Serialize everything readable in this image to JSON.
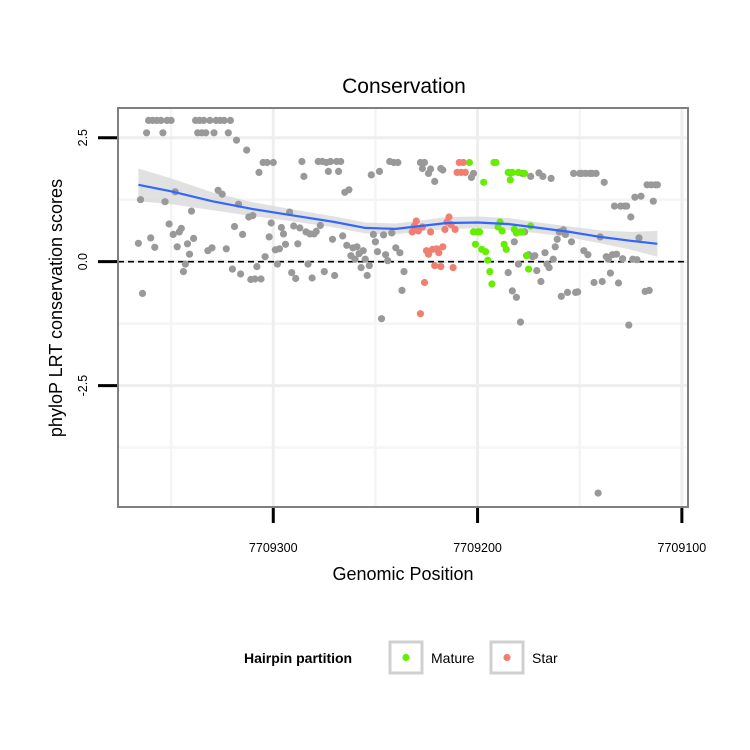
{
  "chart_data": {
    "type": "scatter",
    "title": "Conservation",
    "xlabel": "Genomic Position",
    "ylabel": "phyloP LRT conservation scores",
    "x_reversed": true,
    "xlim": [
      7709376,
      7709097
    ],
    "ylim": [
      -4.95,
      3.1
    ],
    "x_ticks": [
      7709300,
      7709200,
      7709100
    ],
    "x_tick_labels": [
      "7709300",
      "7709200",
      "7709100"
    ],
    "y_ticks": [
      2.5,
      0.0,
      -2.5
    ],
    "y_tick_labels": [
      "2.5",
      "0.0",
      "-2.5"
    ],
    "x_minor_gridlines": [
      7709350,
      7709250,
      7709150
    ],
    "y_minor_gridlines": [
      1.25,
      -1.25,
      -3.75
    ],
    "reference_line": {
      "y": 0,
      "style": "dashed"
    },
    "grid": true,
    "legend": {
      "title": "Hairpin partition",
      "placement": "bottom",
      "entries": [
        {
          "name": "Mature",
          "color": "#66ee00"
        },
        {
          "name": "Star",
          "color": "#f07f72"
        }
      ]
    },
    "colors": {
      "other": "#999999",
      "mature": "#66ee00",
      "star": "#f07f72",
      "smooth": "#3366ff",
      "band": "#dadada"
    },
    "series": [
      {
        "name": "",
        "color": "#999999",
        "points": [
          [
            7709366,
            0.37
          ],
          [
            7709365,
            1.25
          ],
          [
            7709364,
            -0.64
          ],
          [
            7709362,
            2.6
          ],
          [
            7709361,
            2.85
          ],
          [
            7709360,
            0.48
          ],
          [
            7709359,
            2.85
          ],
          [
            7709358,
            0.29
          ],
          [
            7709357,
            2.85
          ],
          [
            7709355,
            2.85
          ],
          [
            7709354,
            2.6
          ],
          [
            7709353,
            1.21
          ],
          [
            7709352,
            2.85
          ],
          [
            7709351,
            0.76
          ],
          [
            7709350,
            2.85
          ],
          [
            7709349,
            0.55
          ],
          [
            7709348,
            1.41
          ],
          [
            7709347,
            0.3
          ],
          [
            7709346,
            0.6
          ],
          [
            7709345,
            0.67
          ],
          [
            7709344,
            -0.2
          ],
          [
            7709343,
            -0.05
          ],
          [
            7709342,
            0.36
          ],
          [
            7709341,
            0.15
          ],
          [
            7709340,
            1.02
          ],
          [
            7709339,
            0.47
          ],
          [
            7709338,
            2.85
          ],
          [
            7709337,
            2.6
          ],
          [
            7709336,
            2.85
          ],
          [
            7709335,
            2.6
          ],
          [
            7709334,
            2.85
          ],
          [
            7709333,
            2.6
          ],
          [
            7709332,
            0.22
          ],
          [
            7709331,
            2.85
          ],
          [
            7709330,
            0.28
          ],
          [
            7709329,
            2.6
          ],
          [
            7709328,
            2.85
          ],
          [
            7709327,
            1.44
          ],
          [
            7709326,
            2.85
          ],
          [
            7709325,
            1.36
          ],
          [
            7709324,
            2.85
          ],
          [
            7709323,
            0.26
          ],
          [
            7709322,
            2.6
          ],
          [
            7709321,
            2.85
          ],
          [
            7709320,
            -0.15
          ],
          [
            7709319,
            0.71
          ],
          [
            7709318,
            2.45
          ],
          [
            7709317,
            1.16
          ],
          [
            7709316,
            -0.25
          ],
          [
            7709315,
            0.55
          ],
          [
            7709313,
            2.25
          ],
          [
            7709312,
            0.9
          ],
          [
            7709311,
            -0.36
          ],
          [
            7709310,
            0.93
          ],
          [
            7709309,
            -0.35
          ],
          [
            7709308,
            -0.1
          ],
          [
            7709307,
            1.8
          ],
          [
            7709306,
            -0.35
          ],
          [
            7709305,
            2.0
          ],
          [
            7709304,
            0.1
          ],
          [
            7709303,
            2.0
          ],
          [
            7709302,
            0.5
          ],
          [
            7709301,
            0.78
          ],
          [
            7709300,
            2.0
          ],
          [
            7709299,
            0.24
          ],
          [
            7709298,
            -0.05
          ],
          [
            7709297,
            0.26
          ],
          [
            7709296,
            0.69
          ],
          [
            7709295,
            0.56
          ],
          [
            7709294,
            0.35
          ],
          [
            7709292,
            1.0
          ],
          [
            7709291,
            -0.22
          ],
          [
            7709290,
            0.72
          ],
          [
            7709289,
            -0.34
          ],
          [
            7709288,
            0.36
          ],
          [
            7709287,
            0.68
          ],
          [
            7709286,
            2.02
          ],
          [
            7709285,
            1.72
          ],
          [
            7709284,
            0.6
          ],
          [
            7709283,
            -0.05
          ],
          [
            7709282,
            0.56
          ],
          [
            7709281,
            -0.33
          ],
          [
            7709280,
            0.56
          ],
          [
            7709279,
            0.61
          ],
          [
            7709278,
            2.02
          ],
          [
            7709277,
            0.73
          ],
          [
            7709276,
            2.02
          ],
          [
            7709275,
            -0.2
          ],
          [
            7709274,
            2.0
          ],
          [
            7709273,
            1.82
          ],
          [
            7709272,
            2.02
          ],
          [
            7709271,
            0.45
          ],
          [
            7709270,
            -0.28
          ],
          [
            7709269,
            2.02
          ],
          [
            7709268,
            1.82
          ],
          [
            7709267,
            2.02
          ],
          [
            7709266,
            0.52
          ],
          [
            7709265,
            1.4
          ],
          [
            7709264,
            0.33
          ],
          [
            7709263,
            1.45
          ],
          [
            7709262,
            0.12
          ],
          [
            7709261,
            0.28
          ],
          [
            7709260,
            0.05
          ],
          [
            7709259,
            0.3
          ],
          [
            7709258,
            0.16
          ],
          [
            7709257,
            -0.12
          ],
          [
            7709256,
            0.22
          ],
          [
            7709255,
            0.05
          ],
          [
            7709254,
            -0.28
          ],
          [
            7709253,
            -0.08
          ],
          [
            7709252,
            1.75
          ],
          [
            7709251,
            0.55
          ],
          [
            7709250,
            0.4
          ],
          [
            7709249,
            0.2
          ],
          [
            7709248,
            1.82
          ],
          [
            7709247,
            -1.15
          ],
          [
            7709246,
            0.54
          ],
          [
            7709245,
            0.14
          ],
          [
            7709244,
            0.02
          ],
          [
            7709243,
            2.02
          ],
          [
            7709242,
            0.58
          ],
          [
            7709241,
            2.0
          ],
          [
            7709240,
            0.28
          ],
          [
            7709239,
            2.0
          ],
          [
            7709238,
            0.18
          ],
          [
            7709237,
            -0.58
          ],
          [
            7709236,
            -0.2
          ],
          [
            7709228,
            2.0
          ],
          [
            7709227,
            1.88
          ],
          [
            7709226,
            2.0
          ],
          [
            7709224,
            1.78
          ],
          [
            7709223,
            1.87
          ],
          [
            7709221,
            1.62
          ],
          [
            7709218,
            1.88
          ],
          [
            7709217,
            1.85
          ],
          [
            7709203,
            1.7
          ],
          [
            7709202,
            1.78
          ],
          [
            7709185,
            -0.22
          ],
          [
            7709184,
            1.79
          ],
          [
            7709183,
            -0.59
          ],
          [
            7709182,
            0.4
          ],
          [
            7709181,
            -0.72
          ],
          [
            7709180,
            -0.05
          ],
          [
            7709179,
            -1.22
          ],
          [
            7709178,
            1.78
          ],
          [
            7709177,
            0.6
          ],
          [
            7709176,
            0.12
          ],
          [
            7709175,
            0.14
          ],
          [
            7709174,
            1.72
          ],
          [
            7709173,
            0.1
          ],
          [
            7709172,
            0.12
          ],
          [
            7709171,
            -0.18
          ],
          [
            7709170,
            1.79
          ],
          [
            7709169,
            -0.4
          ],
          [
            7709168,
            1.72
          ],
          [
            7709167,
            0.18
          ],
          [
            7709166,
            -0.05
          ],
          [
            7709165,
            -0.12
          ],
          [
            7709164,
            1.68
          ],
          [
            7709163,
            0.05
          ],
          [
            7709162,
            0.3
          ],
          [
            7709161,
            0.45
          ],
          [
            7709160,
            0.6
          ],
          [
            7709159,
            -0.7
          ],
          [
            7709158,
            0.64
          ],
          [
            7709157,
            0.55
          ],
          [
            7709156,
            -0.62
          ],
          [
            7709154,
            0.4
          ],
          [
            7709153,
            1.78
          ],
          [
            7709152,
            -0.62
          ],
          [
            7709151,
            -0.61
          ],
          [
            7709150,
            1.78
          ],
          [
            7709149,
            1.78
          ],
          [
            7709148,
            0.22
          ],
          [
            7709147,
            1.78
          ],
          [
            7709146,
            0.14
          ],
          [
            7709145,
            1.78
          ],
          [
            7709144,
            1.78
          ],
          [
            7709143,
            -0.42
          ],
          [
            7709142,
            1.78
          ],
          [
            7709141,
            -4.67
          ],
          [
            7709140,
            0.5
          ],
          [
            7709139,
            -0.4
          ],
          [
            7709138,
            1.6
          ],
          [
            7709137,
            0.1
          ],
          [
            7709136,
            0.05
          ],
          [
            7709135,
            -0.23
          ],
          [
            7709134,
            0.14
          ],
          [
            7709133,
            1.12
          ],
          [
            7709132,
            0.15
          ],
          [
            7709131,
            -0.43
          ],
          [
            7709130,
            1.12
          ],
          [
            7709129,
            0.06
          ],
          [
            7709128,
            1.12
          ],
          [
            7709127,
            1.12
          ],
          [
            7709126,
            -1.28
          ],
          [
            7709125,
            0.9
          ],
          [
            7709124,
            0.05
          ],
          [
            7709123,
            1.3
          ],
          [
            7709122,
            0.04
          ],
          [
            7709121,
            0.48
          ],
          [
            7709120,
            1.32
          ],
          [
            7709118,
            -0.6
          ],
          [
            7709117,
            1.55
          ],
          [
            7709116,
            -0.58
          ],
          [
            7709115,
            1.55
          ],
          [
            7709114,
            1.22
          ],
          [
            7709113,
            1.55
          ],
          [
            7709112,
            1.55
          ]
        ]
      },
      {
        "name": "Mature",
        "color": "#66ee00",
        "points": [
          [
            7709204,
            2.0
          ],
          [
            7709202,
            0.6
          ],
          [
            7709201,
            0.35
          ],
          [
            7709200,
            0.6
          ],
          [
            7709199,
            0.6
          ],
          [
            7709198,
            0.25
          ],
          [
            7709197,
            1.6
          ],
          [
            7709196,
            0.2
          ],
          [
            7709195,
            0.03
          ],
          [
            7709194,
            -0.2
          ],
          [
            7709193,
            -0.45
          ],
          [
            7709192,
            2.0
          ],
          [
            7709191,
            2.0
          ],
          [
            7709190,
            0.7
          ],
          [
            7709189,
            0.8
          ],
          [
            7709188,
            0.62
          ],
          [
            7709187,
            0.35
          ],
          [
            7709186,
            0.25
          ],
          [
            7709185,
            1.8
          ],
          [
            7709184,
            1.65
          ],
          [
            7709183,
            1.8
          ],
          [
            7709182,
            0.65
          ],
          [
            7709181,
            0.58
          ],
          [
            7709180,
            1.8
          ],
          [
            7709179,
            0.6
          ],
          [
            7709178,
            0.6
          ],
          [
            7709177,
            1.78
          ],
          [
            7709176,
            0.12
          ],
          [
            7709175,
            -0.15
          ],
          [
            7709174,
            0.72
          ]
        ]
      },
      {
        "name": "Star",
        "color": "#f07f72",
        "points": [
          [
            7709232,
            0.6
          ],
          [
            7709231,
            0.72
          ],
          [
            7709230,
            0.82
          ],
          [
            7709229,
            0.62
          ],
          [
            7709228,
            -1.05
          ],
          [
            7709227,
            0.7
          ],
          [
            7709226,
            -0.42
          ],
          [
            7709225,
            0.22
          ],
          [
            7709224,
            0.15
          ],
          [
            7709223,
            0.6
          ],
          [
            7709222,
            0.25
          ],
          [
            7709221,
            -0.08
          ],
          [
            7709220,
            0.26
          ],
          [
            7709219,
            0.18
          ],
          [
            7709218,
            -0.1
          ],
          [
            7709217,
            0.3
          ],
          [
            7709216,
            0.65
          ],
          [
            7709215,
            0.8
          ],
          [
            7709214,
            0.9
          ],
          [
            7709213,
            0.75
          ],
          [
            7709212,
            -0.12
          ],
          [
            7709211,
            0.65
          ],
          [
            7709210,
            1.8
          ],
          [
            7709209,
            2.0
          ],
          [
            7709208,
            1.8
          ],
          [
            7709207,
            2.0
          ],
          [
            7709206,
            1.8
          ]
        ]
      }
    ],
    "smooth": {
      "x": [
        7709366,
        7709350,
        7709330,
        7709310,
        7709290,
        7709270,
        7709255,
        7709240,
        7709230,
        7709215,
        7709200,
        7709185,
        7709170,
        7709155,
        7709140,
        7709125,
        7709112
      ],
      "y": [
        1.55,
        1.42,
        1.22,
        1.06,
        0.93,
        0.8,
        0.68,
        0.66,
        0.71,
        0.78,
        0.79,
        0.76,
        0.68,
        0.6,
        0.5,
        0.42,
        0.36
      ],
      "band_half_width": [
        0.33,
        0.26,
        0.18,
        0.14,
        0.12,
        0.11,
        0.11,
        0.11,
        0.11,
        0.12,
        0.12,
        0.12,
        0.11,
        0.11,
        0.13,
        0.18,
        0.26
      ]
    }
  }
}
